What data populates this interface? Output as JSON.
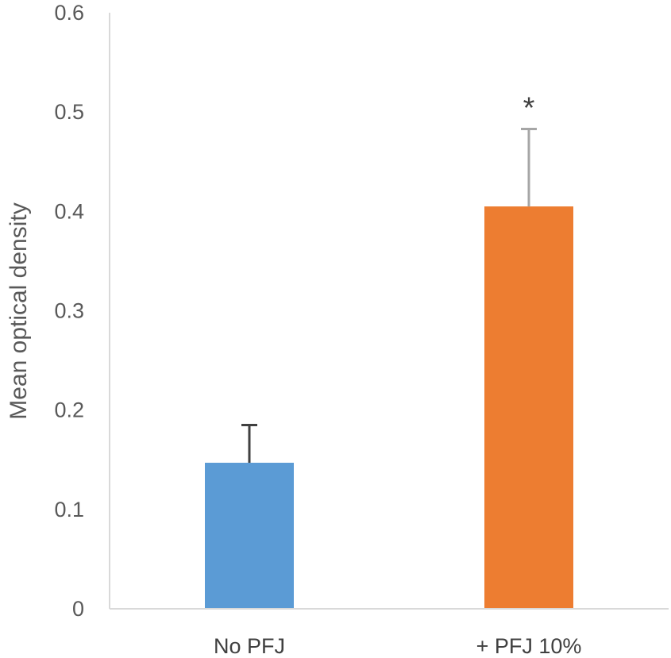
{
  "chart_data": {
    "type": "bar",
    "title": "",
    "xlabel": "",
    "ylabel": "Mean optical density",
    "ylim": [
      0,
      0.6
    ],
    "yticks": [
      0,
      0.1,
      0.2,
      0.3,
      0.4,
      0.5,
      0.6
    ],
    "ytick_labels": [
      "0",
      "0.1",
      "0.2",
      "0.3",
      "0.4",
      "0.5",
      "0.6"
    ],
    "grid": false,
    "legend": "none",
    "categories": [
      "No PFJ",
      "+ PFJ 10%"
    ],
    "values": [
      0.147,
      0.405
    ],
    "error_upper": [
      0.038,
      0.078
    ],
    "colors": [
      "#5b9bd5",
      "#ed7d31"
    ],
    "error_colors": [
      "#404040",
      "#a6a6a6"
    ],
    "annotations": [
      {
        "category": "+ PFJ 10%",
        "text": "*"
      }
    ]
  }
}
